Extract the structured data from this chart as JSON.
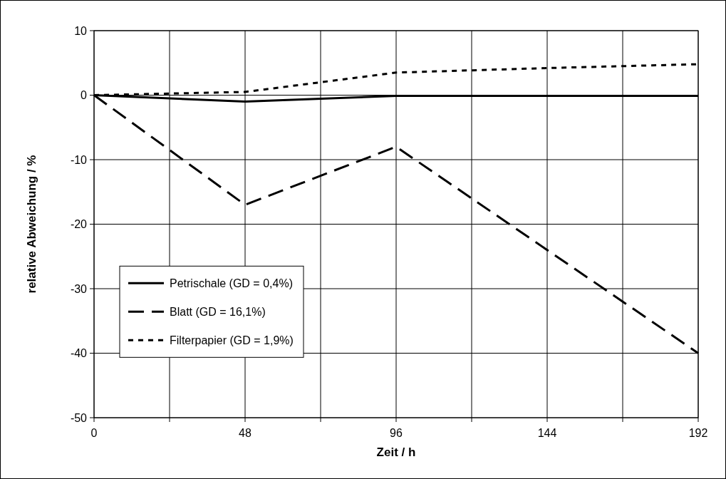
{
  "chart_data": {
    "type": "line",
    "xlabel": "Zeit / h",
    "ylabel": "relative Abweichung / %",
    "xlim": [
      0,
      192
    ],
    "xticks": [
      0,
      {
        "value": 24,
        "label": null
      },
      48,
      {
        "value": 72,
        "label": null
      },
      96,
      {
        "value": 120,
        "label": null
      },
      144,
      {
        "value": 168,
        "label": null
      },
      192
    ],
    "ylim": [
      -50,
      10
    ],
    "yticks": [
      -50,
      -40,
      -30,
      -20,
      -10,
      0,
      10
    ],
    "grid": true,
    "legend": "bottom left",
    "series": [
      {
        "name": "Petrischale (GD = 0,4%)",
        "color": "#000000",
        "line_style": "solid",
        "x": [
          0,
          48,
          96,
          144,
          192
        ],
        "values": [
          0,
          -1,
          -0.1,
          -0.1,
          -0.1
        ]
      },
      {
        "name": "Blatt (GD = 16,1%)",
        "color": "#000000",
        "line_style": "dashed",
        "x": [
          0,
          48,
          96,
          144,
          192
        ],
        "values": [
          0,
          -17,
          -8,
          -24,
          -40
        ]
      },
      {
        "name": "Filterpapier (GD = 1,9%)",
        "color": "#000000",
        "line_style": "dotted",
        "x": [
          0,
          48,
          96,
          144,
          192
        ],
        "values": [
          0,
          0.5,
          3.5,
          4.2,
          4.8
        ]
      }
    ]
  }
}
